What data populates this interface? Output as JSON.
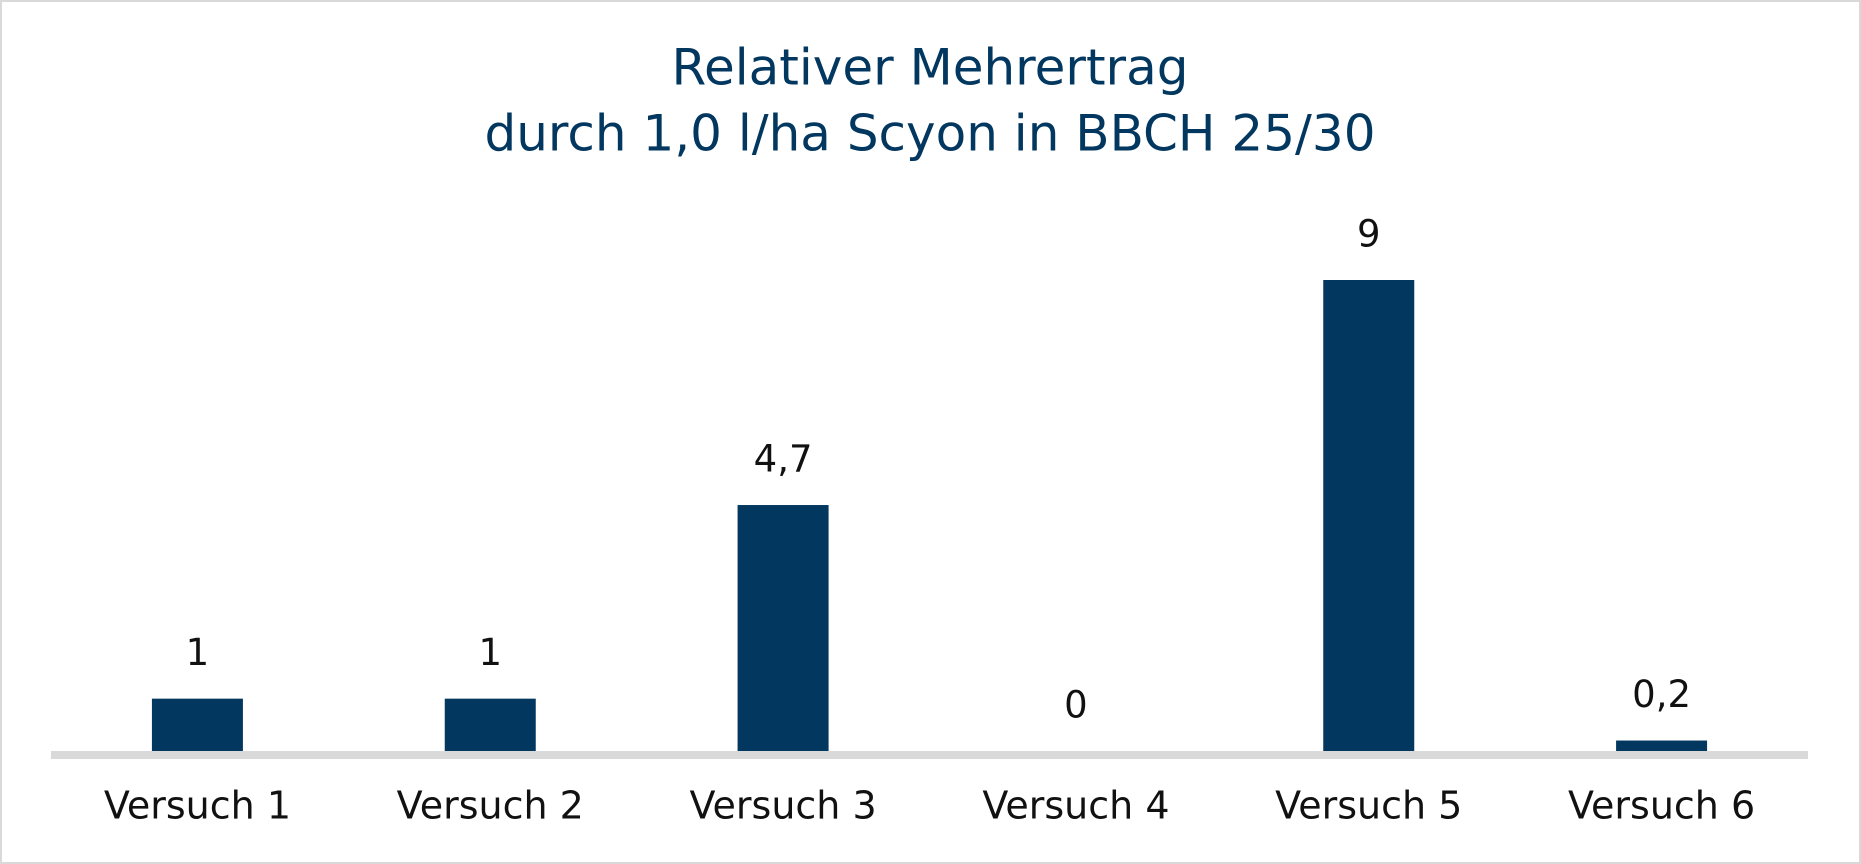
{
  "chart_data": {
    "type": "bar",
    "title": [
      "Relativer Mehrertrag",
      "durch 1,0 l/ha Scyon in BBCH 25/30"
    ],
    "categories": [
      "Versuch 1",
      "Versuch 2",
      "Versuch 3",
      "Versuch 4",
      "Versuch 5",
      "Versuch 6"
    ],
    "values": [
      1,
      1,
      4.7,
      0,
      9,
      0.2
    ],
    "value_labels": [
      "1",
      "1",
      "4,7",
      "0",
      "9",
      "0,2"
    ],
    "color": "#02375f"
  }
}
